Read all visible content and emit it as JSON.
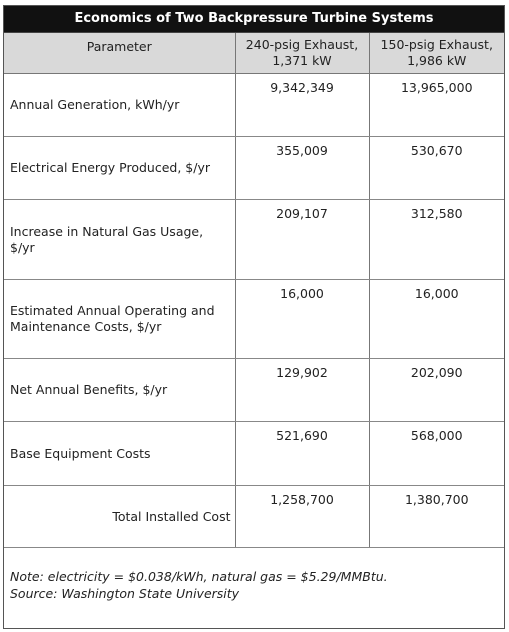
{
  "title": "Economics of Two Backpressure Turbine Systems",
  "headers": {
    "parameter": "Parameter",
    "col1": [
      "240-psig Exhaust,",
      "1,371 kW"
    ],
    "col2": [
      "150-psig Exhaust,",
      "1,986 kW"
    ]
  },
  "rows": [
    {
      "label": [
        "Annual Generation, kWh/yr"
      ],
      "v1": "9,342,349",
      "v2": "13,965,000"
    },
    {
      "label": [
        "Electrical Energy Produced, $/yr"
      ],
      "v1": "355,009",
      "v2": "530,670"
    },
    {
      "label": [
        "Increase in Natural Gas Usage,",
        "$/yr"
      ],
      "v1": "209,107",
      "v2": "312,580"
    },
    {
      "label": [
        "Estimated Annual Operating and",
        "Maintenance Costs, $/yr"
      ],
      "v1": "16,000",
      "v2": "16,000"
    },
    {
      "label": [
        "Net Annual Benefits, $/yr"
      ],
      "v1": "129,902",
      "v2": "202,090"
    },
    {
      "label": [
        "Base Equipment Costs"
      ],
      "v1": "521,690",
      "v2": "568,000"
    },
    {
      "label": [
        "Total Installed Cost"
      ],
      "v1": "1,258,700",
      "v2": "1,380,700"
    }
  ],
  "note": {
    "line1": "Note: electricity = $0.038/kWh, natural gas = $5.29/MMBtu.",
    "line2": "Source: Washington State University"
  }
}
